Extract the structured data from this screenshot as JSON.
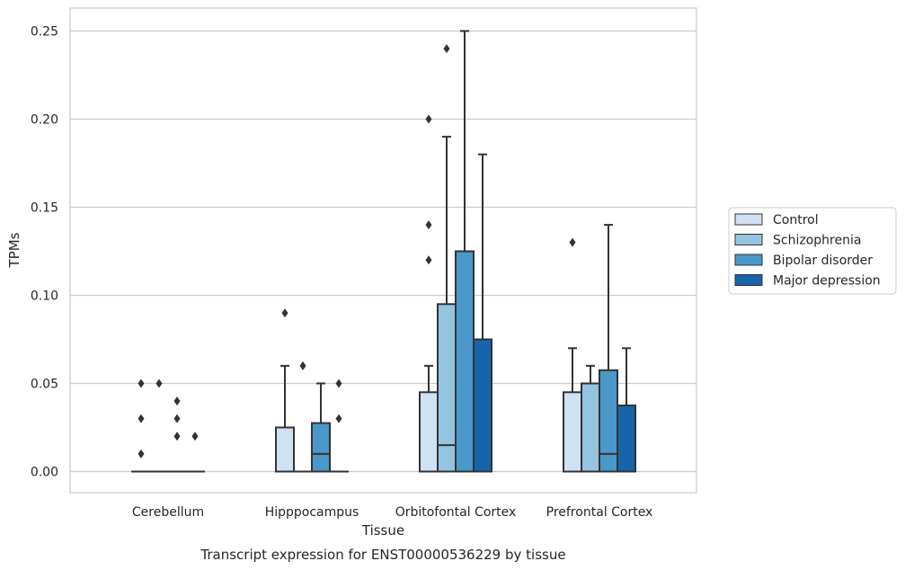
{
  "chart_data": {
    "type": "box",
    "title": "",
    "caption": "Transcript expression for ENST00000536229 by tissue",
    "xlabel": "Tissue",
    "ylabel": "TPMs",
    "ylim": [
      -0.012,
      0.263
    ],
    "yticks": [
      "0.00",
      "0.05",
      "0.10",
      "0.15",
      "0.20",
      "0.25"
    ],
    "grid": true,
    "legend_position": "right",
    "categories": [
      "Cerebellum",
      "Hipppocampus",
      "Orbitofontal Cortex",
      "Prefrontal Cortex"
    ],
    "series": [
      {
        "name": "Control",
        "color": "#d0e1f2",
        "boxes": [
          {
            "whisker_low": 0,
            "q1": 0,
            "median": 0,
            "q3": 0,
            "whisker_high": 0,
            "outliers": [
              0.01,
              0.03,
              0.05
            ]
          },
          {
            "whisker_low": 0,
            "q1": 0,
            "median": 0,
            "q3": 0.025,
            "whisker_high": 0.06,
            "outliers": [
              0.09
            ]
          },
          {
            "whisker_low": 0,
            "q1": 0,
            "median": 0,
            "q3": 0.045,
            "whisker_high": 0.06,
            "outliers": [
              0.12,
              0.14,
              0.2
            ]
          },
          {
            "whisker_low": 0,
            "q1": 0,
            "median": 0,
            "q3": 0.045,
            "whisker_high": 0.07,
            "outliers": [
              0.13
            ]
          }
        ]
      },
      {
        "name": "Schizophrenia",
        "color": "#94c4df",
        "boxes": [
          {
            "whisker_low": 0,
            "q1": 0,
            "median": 0,
            "q3": 0,
            "whisker_high": 0,
            "outliers": [
              0.05
            ]
          },
          {
            "whisker_low": 0,
            "q1": 0,
            "median": 0,
            "q3": 0,
            "whisker_high": 0,
            "outliers": [
              0.06
            ]
          },
          {
            "whisker_low": 0,
            "q1": 0,
            "median": 0.015,
            "q3": 0.095,
            "whisker_high": 0.19,
            "outliers": [
              0.24
            ]
          },
          {
            "whisker_low": 0,
            "q1": 0,
            "median": 0,
            "q3": 0.05,
            "whisker_high": 0.06,
            "outliers": []
          }
        ]
      },
      {
        "name": "Bipolar disorder",
        "color": "#4a98c9",
        "boxes": [
          {
            "whisker_low": 0,
            "q1": 0,
            "median": 0,
            "q3": 0,
            "whisker_high": 0,
            "outliers": [
              0.02,
              0.03,
              0.04
            ]
          },
          {
            "whisker_low": 0,
            "q1": 0,
            "median": 0.01,
            "q3": 0.0275,
            "whisker_high": 0.05,
            "outliers": []
          },
          {
            "whisker_low": 0,
            "q1": 0,
            "median": 0,
            "q3": 0.125,
            "whisker_high": 0.25,
            "outliers": []
          },
          {
            "whisker_low": 0,
            "q1": 0,
            "median": 0.01,
            "q3": 0.0575,
            "whisker_high": 0.14,
            "outliers": []
          }
        ]
      },
      {
        "name": "Major depression",
        "color": "#1764ab",
        "boxes": [
          {
            "whisker_low": 0,
            "q1": 0,
            "median": 0,
            "q3": 0,
            "whisker_high": 0,
            "outliers": [
              0.02
            ]
          },
          {
            "whisker_low": 0,
            "q1": 0,
            "median": 0,
            "q3": 0,
            "whisker_high": 0,
            "outliers": [
              0.03,
              0.05
            ]
          },
          {
            "whisker_low": 0,
            "q1": 0,
            "median": 0,
            "q3": 0.075,
            "whisker_high": 0.18,
            "outliers": []
          },
          {
            "whisker_low": 0,
            "q1": 0,
            "median": 0,
            "q3": 0.0375,
            "whisker_high": 0.07,
            "outliers": []
          }
        ]
      }
    ]
  }
}
